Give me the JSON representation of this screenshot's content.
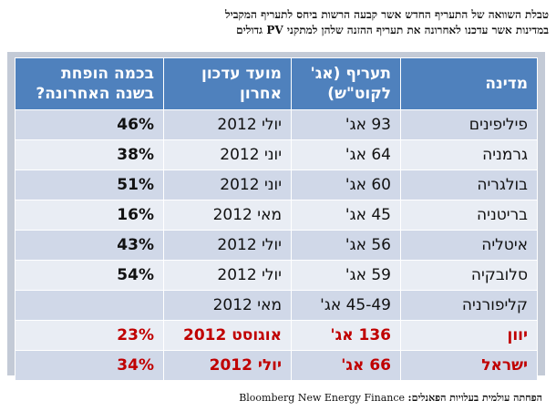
{
  "caption": {
    "line1": "טבלת השוואה של התעריף החדש אשר קבעה הרשות ביחס לתעריף המקביל",
    "line2": "במדינות אשר עדכנו לאחרונה את תעריף ההזנה שלהן למתקני PV גדולים"
  },
  "table": {
    "headers": [
      "מדינה",
      "תעריף (אג' לקוט\"ש)",
      "מועד עדכון אחרון",
      "בכמה הופחת בשנה האחרונה?"
    ],
    "rows": [
      {
        "country": "פיליפינים",
        "tariff": "93 אג'",
        "date": "יולי 2012",
        "reduction": "46%"
      },
      {
        "country": "גרמניה",
        "tariff": "64 אג'",
        "date": "יוני 2012",
        "reduction": "38%"
      },
      {
        "country": "בולגריה",
        "tariff": "60 אג'",
        "date": "יוני 2012",
        "reduction": "51%"
      },
      {
        "country": "בריטניה",
        "tariff": "45 אג'",
        "date": "מאי 2012",
        "reduction": "16%"
      },
      {
        "country": "איטליה",
        "tariff": "56 אג'",
        "date": "יולי 2012",
        "reduction": "43%"
      },
      {
        "country": "סלובקיה",
        "tariff": "59 אג'",
        "date": "יולי 2012",
        "reduction": "54%"
      },
      {
        "country": "קליפורניה",
        "tariff": "45-49 אג'",
        "date": "מאי 2012",
        "reduction": ""
      },
      {
        "country": "יוון",
        "tariff": "136 אג'",
        "date": "אוגוסט 2012",
        "reduction": "23%"
      },
      {
        "country": "ישראל",
        "tariff": "66 אג'",
        "date": "יולי 2012",
        "reduction": "34%"
      }
    ],
    "highlight_color": "#c00000",
    "header_color": "#4f81bd"
  },
  "footer": {
    "label": "הפחתה עולמית בעלויות הפאנלים:",
    "source": "Bloomberg New Energy Finance"
  }
}
